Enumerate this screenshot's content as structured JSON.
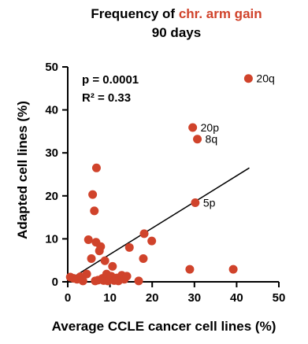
{
  "chart_data": {
    "type": "scatter",
    "title_prefix": "Frequency of ",
    "title_highlight": "chr. arm gain",
    "subtitle": "90 days",
    "xlabel": "Average CCLE cancer cell lines (%)",
    "ylabel": "Adapted cell lines (%)",
    "xlim": [
      0,
      50
    ],
    "ylim": [
      0,
      50
    ],
    "xticks": [
      0,
      10,
      20,
      30,
      40,
      50
    ],
    "yticks": [
      0,
      10,
      20,
      30,
      40,
      50
    ],
    "grid": false,
    "stats": {
      "p_text": "p = 0.0001",
      "r2_text": "R² = 0.33"
    },
    "regression": {
      "x1": 0,
      "y1": 0.3,
      "x2": 43,
      "y2": 26.5
    },
    "point_color": "#d0432b",
    "highlight_color": "#d0432b",
    "points": [
      {
        "x": 0.6,
        "y": 1.1
      },
      {
        "x": 1.4,
        "y": 0.8
      },
      {
        "x": 2.2,
        "y": 0.6
      },
      {
        "x": 3.0,
        "y": 1.2
      },
      {
        "x": 3.6,
        "y": 0.2
      },
      {
        "x": 4.5,
        "y": 1.8
      },
      {
        "x": 4.9,
        "y": 9.8
      },
      {
        "x": 5.6,
        "y": 5.4
      },
      {
        "x": 5.9,
        "y": 20.3
      },
      {
        "x": 6.3,
        "y": 16.5
      },
      {
        "x": 6.5,
        "y": 0.2
      },
      {
        "x": 6.7,
        "y": 9.2
      },
      {
        "x": 6.8,
        "y": 26.5
      },
      {
        "x": 7.2,
        "y": 0.4
      },
      {
        "x": 7.5,
        "y": 7.2
      },
      {
        "x": 7.8,
        "y": 8.2
      },
      {
        "x": 8.2,
        "y": 0.8
      },
      {
        "x": 8.5,
        "y": 0.3
      },
      {
        "x": 8.8,
        "y": 4.9
      },
      {
        "x": 9.2,
        "y": 1.8
      },
      {
        "x": 9.5,
        "y": 0.2
      },
      {
        "x": 9.9,
        "y": 0.5
      },
      {
        "x": 10.3,
        "y": 1.3
      },
      {
        "x": 10.6,
        "y": 3.6
      },
      {
        "x": 11.0,
        "y": 0.3
      },
      {
        "x": 11.6,
        "y": 0.9
      },
      {
        "x": 12.0,
        "y": 0.2
      },
      {
        "x": 12.8,
        "y": 1.5
      },
      {
        "x": 13.4,
        "y": 0.6
      },
      {
        "x": 14.0,
        "y": 1.3
      },
      {
        "x": 14.6,
        "y": 8.0
      },
      {
        "x": 16.8,
        "y": 0.2
      },
      {
        "x": 17.9,
        "y": 5.4
      },
      {
        "x": 18.1,
        "y": 11.2
      },
      {
        "x": 19.9,
        "y": 9.5
      },
      {
        "x": 28.9,
        "y": 2.9
      },
      {
        "x": 39.2,
        "y": 2.9
      }
    ],
    "labeled_points": [
      {
        "label": "20q",
        "x": 42.8,
        "y": 47.3
      },
      {
        "label": "20p",
        "x": 29.6,
        "y": 35.9
      },
      {
        "label": "8q",
        "x": 30.7,
        "y": 33.2
      },
      {
        "label": "5p",
        "x": 30.2,
        "y": 18.4
      }
    ]
  }
}
